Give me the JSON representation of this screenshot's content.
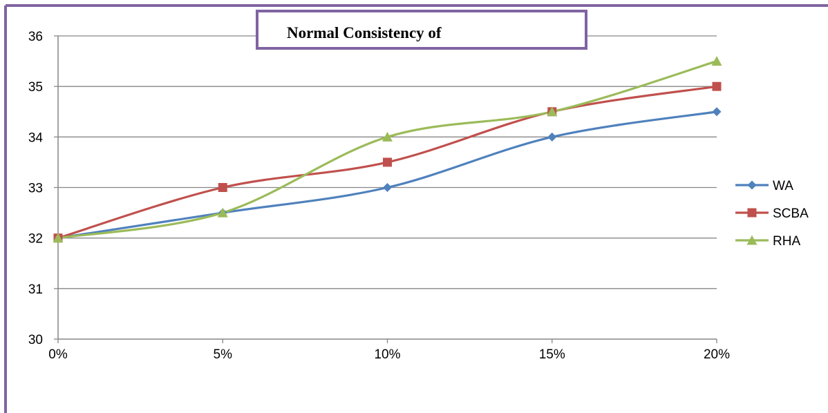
{
  "colors": {
    "frame_border": "#8064A2",
    "gridline": "#868686",
    "axis": "#868686",
    "background": "#ffffff"
  },
  "chart_data": {
    "type": "line",
    "title": "Normal Consistency of",
    "xlabel": "",
    "ylabel": "",
    "categories": [
      "0%",
      "5%",
      "10%",
      "15%",
      "20%"
    ],
    "y_ticks": [
      "30",
      "31",
      "32",
      "33",
      "34",
      "35",
      "36"
    ],
    "ylim": [
      30,
      36
    ],
    "grid": true,
    "smooth": true,
    "legend_position": "right",
    "series": [
      {
        "name": "WA",
        "color": "#4F81BD",
        "marker": "diamond",
        "values": [
          32,
          32.5,
          33,
          34,
          34.5
        ]
      },
      {
        "name": "SCBA",
        "color": "#C0504D",
        "marker": "square",
        "values": [
          32,
          33,
          33.5,
          34.5,
          35
        ]
      },
      {
        "name": "RHA",
        "color": "#9BBB59",
        "marker": "triangle",
        "values": [
          32,
          32.5,
          34,
          34.5,
          35.5
        ]
      }
    ]
  }
}
